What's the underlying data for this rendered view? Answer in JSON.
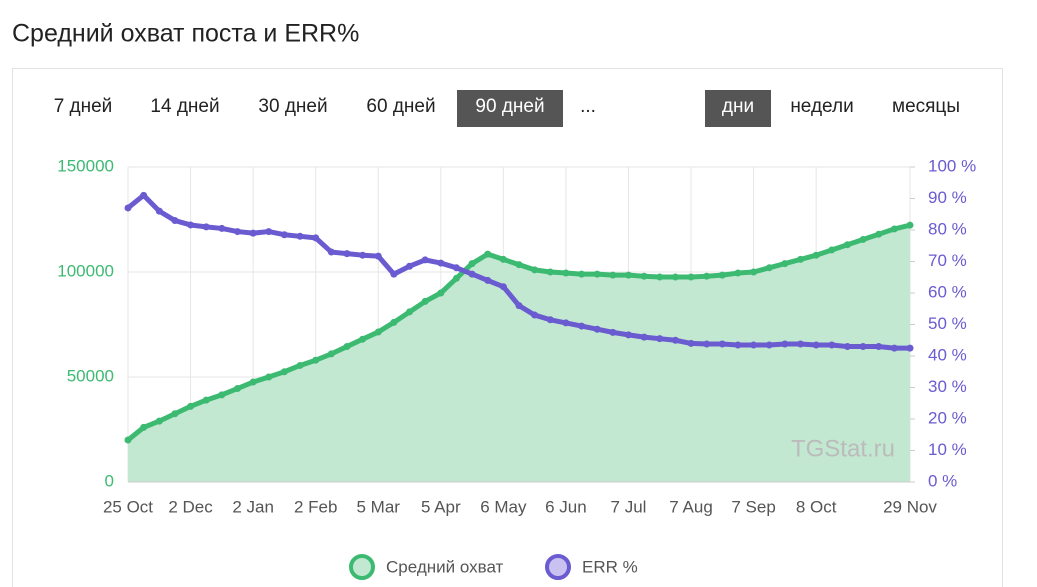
{
  "periods": [
    "7 дней",
    "14 дней",
    "30 дней",
    "60 дней",
    "90 дней",
    "..."
  ],
  "granularity": [
    "дни",
    "недели",
    "месяцы"
  ],
  "watermark": "TGStat.ru",
  "chart_data": {
    "type": "area",
    "title": "Средний охват поста и ERR%",
    "categories": [
      "25 Oct",
      null,
      null,
      null,
      "2 Dec",
      null,
      null,
      null,
      "2 Jan",
      null,
      null,
      null,
      "2 Feb",
      null,
      null,
      null,
      "5 Mar",
      null,
      null,
      null,
      "5 Apr",
      null,
      null,
      null,
      "6 May",
      null,
      null,
      null,
      "6 Jun",
      null,
      null,
      null,
      "7 Jul",
      null,
      null,
      null,
      "7 Aug",
      null,
      null,
      null,
      "7 Sep",
      null,
      null,
      null,
      "8 Oct",
      null,
      null,
      null,
      null,
      null,
      "29 Nov"
    ],
    "series": [
      {
        "name": "Средний охват",
        "color": "#3dba72",
        "fill": "#c3e8d1",
        "values": [
          20000,
          26000,
          29000,
          32500,
          36000,
          39000,
          41500,
          44500,
          47600,
          50000,
          52500,
          55500,
          58000,
          61000,
          64500,
          68000,
          71400,
          76000,
          81000,
          86000,
          90000,
          97000,
          104000,
          108500,
          106000,
          103500,
          101000,
          100000,
          99500,
          99000,
          99000,
          98500,
          98500,
          98000,
          97600,
          97600,
          97600,
          98000,
          98500,
          99500,
          100000,
          102000,
          104000,
          106000,
          108000,
          110500,
          113000,
          115500,
          118000,
          120500,
          122300
        ]
      },
      {
        "name": "ERR %",
        "color": "#6a5bd0",
        "axis": "y2",
        "values": [
          87,
          91,
          86,
          83,
          81.6,
          81,
          80.5,
          79.5,
          79,
          79.5,
          78.5,
          78,
          77.5,
          73,
          72.5,
          72,
          71.7,
          66,
          68.5,
          70.5,
          69.5,
          68,
          66,
          64,
          62,
          56,
          53,
          51.5,
          50.5,
          49.5,
          48.5,
          47.5,
          46.7,
          46,
          45.5,
          45,
          44,
          43.8,
          43.8,
          43.5,
          43.5,
          43.5,
          43.8,
          43.8,
          43.5,
          43.5,
          43,
          43,
          43,
          42.5,
          42.5
        ]
      }
    ],
    "ylim": [
      0,
      150000
    ],
    "yticks": [
      0,
      50000,
      100000,
      150000
    ],
    "y2lim": [
      0,
      100
    ],
    "y2ticks": [
      {
        "value": 0,
        "label": "0 %"
      },
      {
        "value": 10,
        "label": "10 %"
      },
      {
        "value": 20,
        "label": "20 %"
      },
      {
        "value": 30,
        "label": "30 %"
      },
      {
        "value": 40,
        "label": "40 %"
      },
      {
        "value": 50,
        "label": "50 %"
      },
      {
        "value": 60,
        "label": "60 %"
      },
      {
        "value": 70,
        "label": "70 %"
      },
      {
        "value": 80,
        "label": "80 %"
      },
      {
        "value": 90,
        "label": "90 %"
      },
      {
        "value": 100,
        "label": "100 %"
      }
    ],
    "grid": true
  }
}
